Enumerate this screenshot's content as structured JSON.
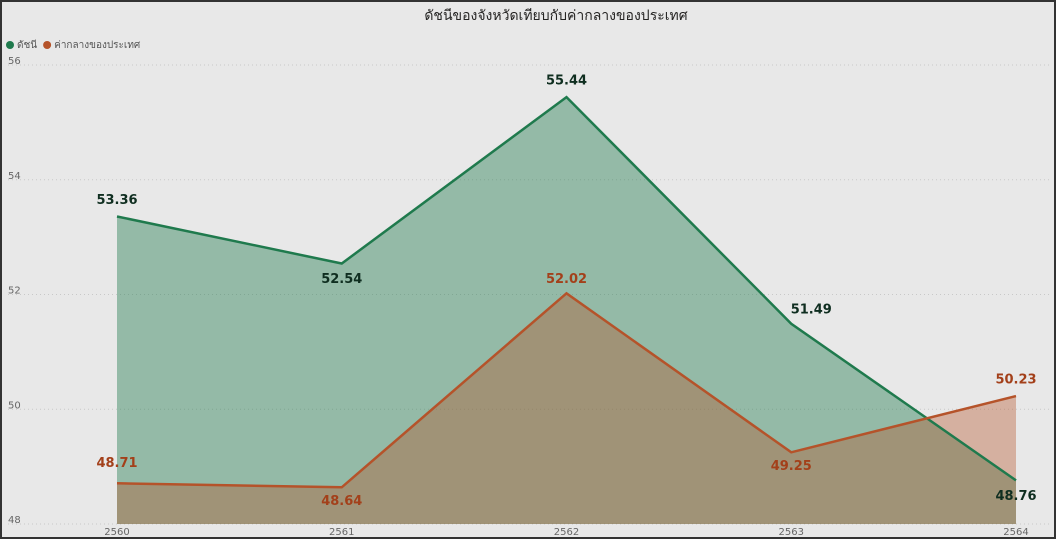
{
  "chart_data": {
    "type": "area",
    "title": "ดัชนีของจังหวัดเทียบกับค่ากลางของประเทศ",
    "categories": [
      "2560",
      "2561",
      "2562",
      "2563",
      "2564"
    ],
    "series": [
      {
        "name": "ดัชนี",
        "color": "#1f7a4d",
        "values": [
          53.36,
          52.54,
          55.44,
          51.49,
          48.76
        ]
      },
      {
        "name": "ค่ากลางของประเทศ",
        "color": "#b5532a",
        "values": [
          48.71,
          48.64,
          52.02,
          49.25,
          50.23
        ]
      }
    ],
    "ylim": [
      48,
      56
    ],
    "yticks": [
      48,
      50,
      52,
      54,
      56
    ],
    "grid": true,
    "legend": "top-left"
  }
}
